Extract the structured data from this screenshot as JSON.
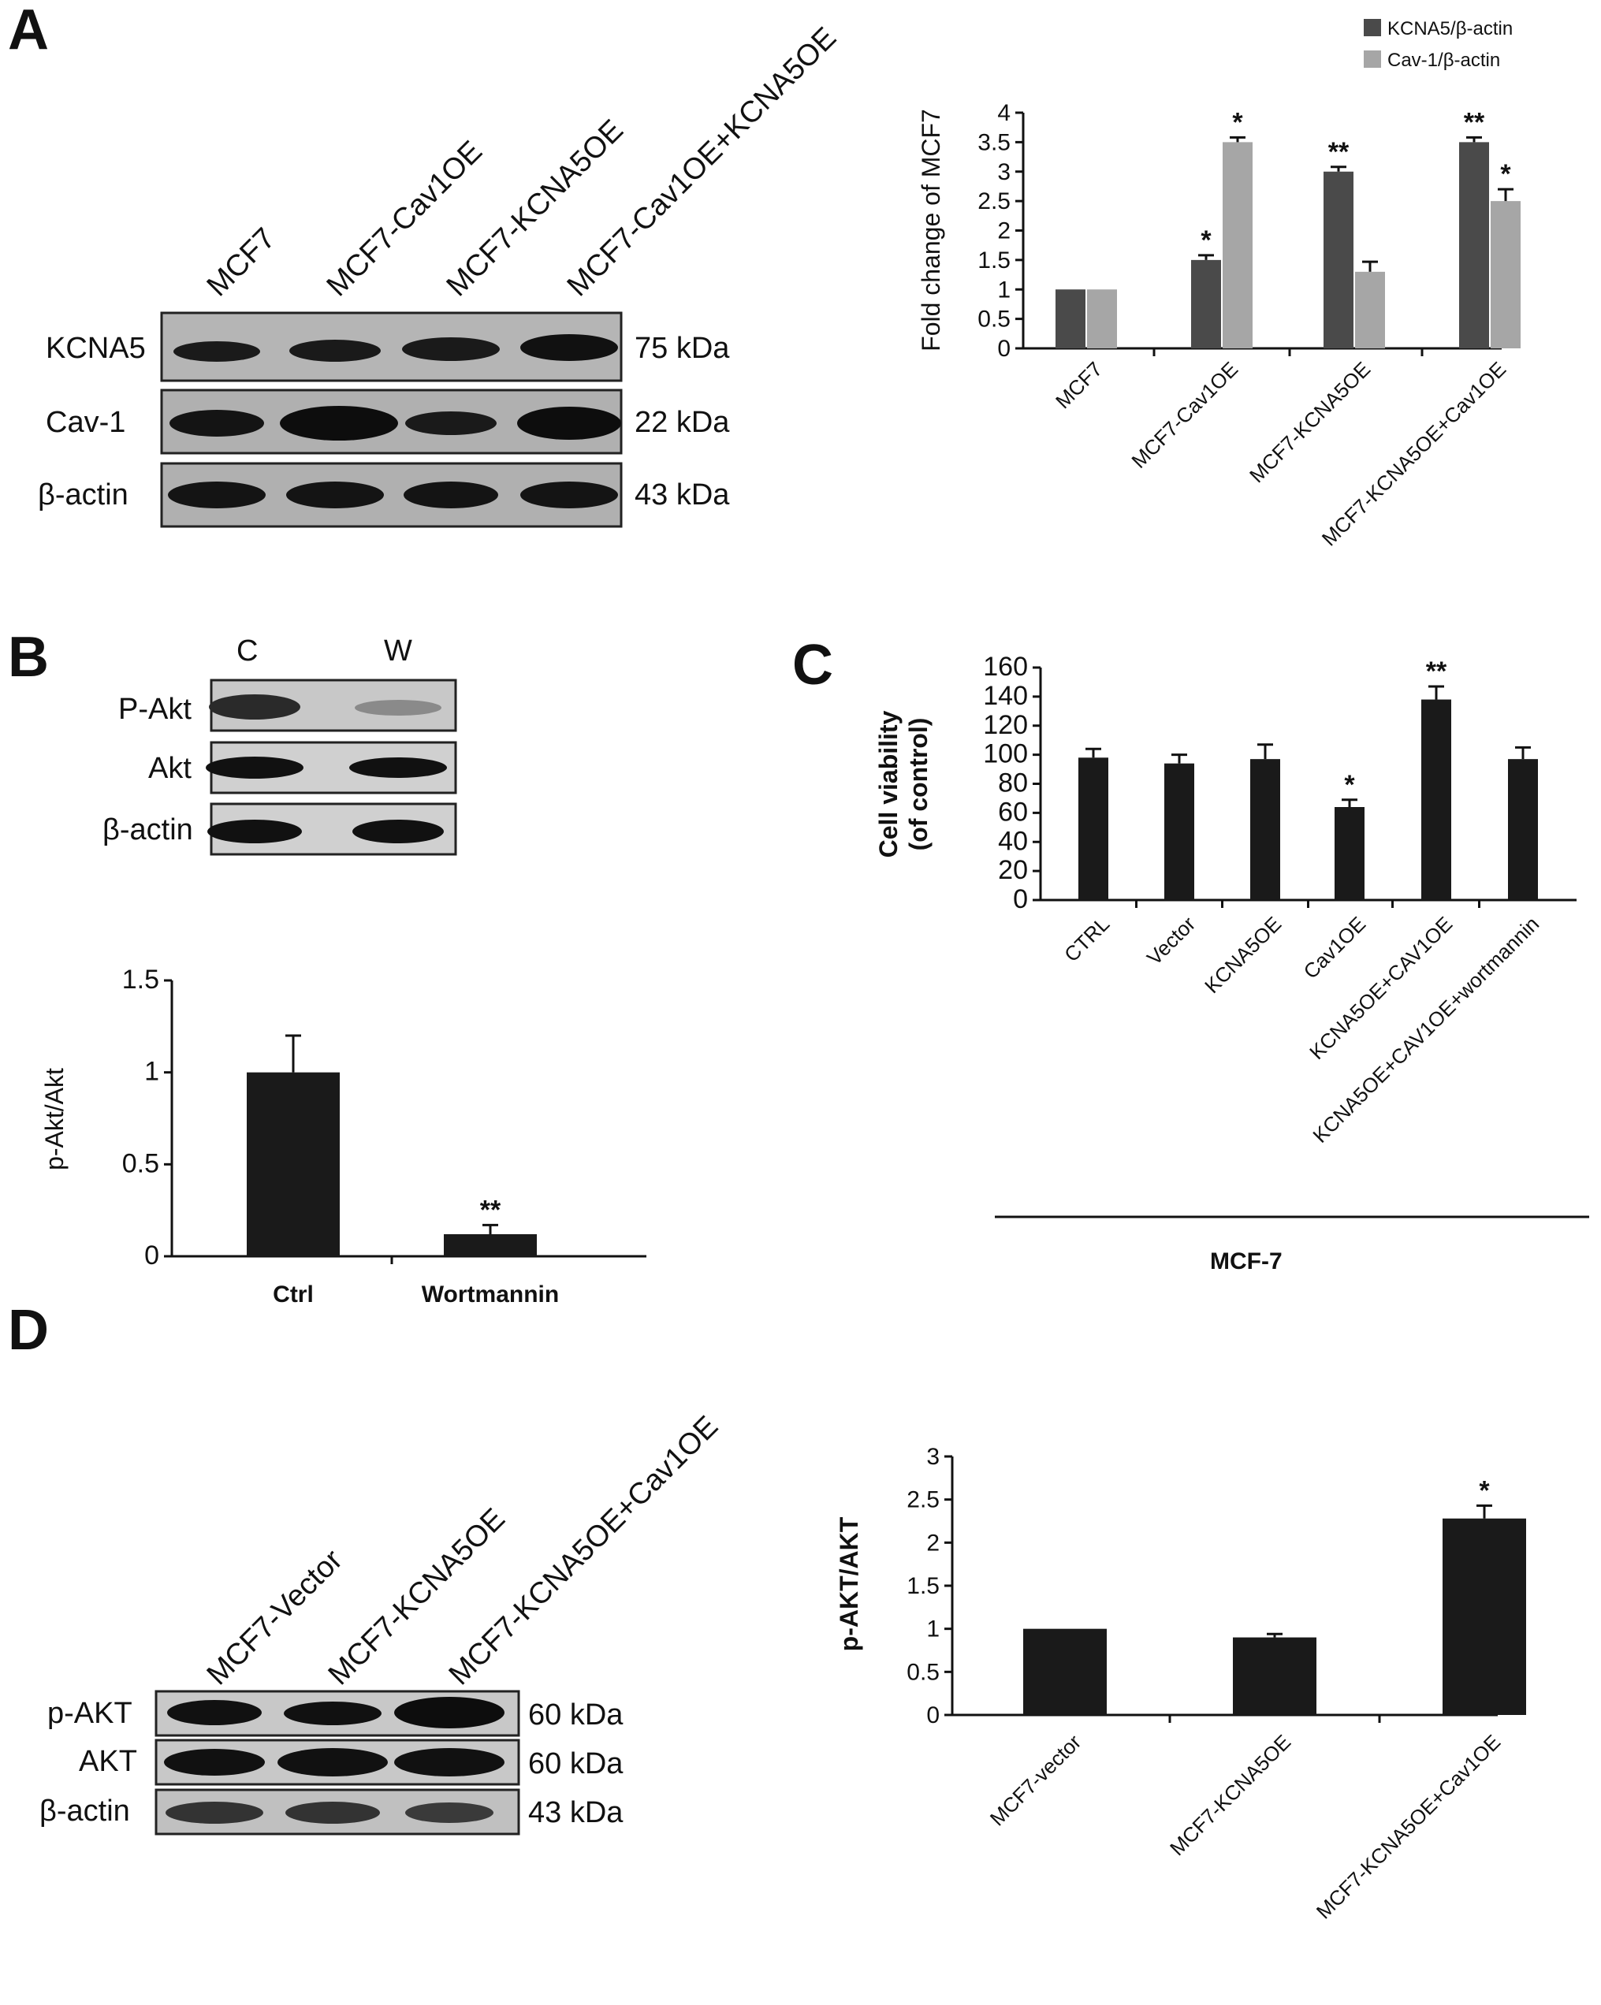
{
  "panels": {
    "A": {
      "letter": "A",
      "blot": {
        "lanes": [
          "MCF7",
          "MCF7-Cav1OE",
          "MCF7-KCNA5OE",
          "MCF7-Cav1OE+KCNA5OE"
        ],
        "rows": [
          {
            "label": "KCNA5",
            "kda": "75  kDa"
          },
          {
            "label": "Cav-1",
            "kda": "22  kDa"
          },
          {
            "label": "β-actin",
            "kda": "43  kDa"
          }
        ]
      }
    },
    "B": {
      "letter": "B",
      "blot": {
        "lanes": [
          "C",
          "W"
        ],
        "rows": [
          {
            "label": "P-Akt"
          },
          {
            "label": "Akt"
          },
          {
            "label": "β-actin"
          }
        ]
      }
    },
    "C": {
      "letter": "C",
      "group_label": "MCF-7"
    },
    "D": {
      "letter": "D",
      "blot": {
        "lanes": [
          "MCF7-Vector",
          "MCF7-KCNA5OE",
          "MCF7-KCNA5OE+Cav1OE"
        ],
        "rows": [
          {
            "label": "p-AKT",
            "kda": "60 kDa"
          },
          {
            "label": "AKT",
            "kda": "60 kDa"
          },
          {
            "label": "β-actin",
            "kda": "43 kDa"
          }
        ]
      }
    }
  },
  "chart_data": [
    {
      "id": "A",
      "type": "bar",
      "categories": [
        "MCF7",
        "MCF7-Cav1OE",
        "MCF7-KCNA5OE",
        "MCF7-KCNA5OE+Cav1OE"
      ],
      "series": [
        {
          "name": "KCNA5/β-actin",
          "values": [
            1,
            1.5,
            3,
            3.5
          ],
          "errors": [
            0,
            0.08,
            0.08,
            0.08
          ],
          "sig": [
            "",
            "*",
            "**",
            "**"
          ],
          "color": "#4a4a4a"
        },
        {
          "name": "Cav-1/β-actin",
          "values": [
            1,
            3.5,
            1.3,
            2.5
          ],
          "errors": [
            0,
            0.08,
            0.17,
            0.2
          ],
          "sig": [
            "",
            "*",
            "",
            "*"
          ],
          "color": "#a6a6a6"
        }
      ],
      "ylabel": "Fold change of MCF7",
      "ylim": [
        0,
        4
      ],
      "yticks": [
        "0",
        "0.5",
        "1",
        "1.5",
        "2",
        "2.5",
        "3",
        "3.5",
        "4"
      ],
      "legend_position": "top-right"
    },
    {
      "id": "B",
      "type": "bar",
      "categories": [
        "Ctrl",
        "Wortmannin"
      ],
      "values": [
        1,
        0.12
      ],
      "errors": [
        0.2,
        0.05
      ],
      "sig": [
        "",
        "**"
      ],
      "ylabel": "p-Akt/Akt",
      "ylim": [
        0,
        1.5
      ],
      "yticks": [
        "0",
        "0.5",
        "1",
        "1.5"
      ]
    },
    {
      "id": "C",
      "type": "bar",
      "categories": [
        "CTRL",
        "Vector",
        "KCNA5OE",
        "Cav1OE",
        "KCNA5OE+CAV1OE",
        "KCNA5OE+CAV1OE+wortmannin"
      ],
      "values": [
        98,
        94,
        97,
        64,
        138,
        97
      ],
      "errors": [
        6,
        6,
        10,
        5,
        9,
        8
      ],
      "sig": [
        "",
        "",
        "",
        "*",
        "**",
        ""
      ],
      "ylabel": [
        "Cell viability",
        "(of control)"
      ],
      "ylim": [
        0,
        160
      ],
      "yticks": [
        "0",
        "20",
        "40",
        "60",
        "80",
        "100",
        "120",
        "140",
        "160"
      ]
    },
    {
      "id": "D",
      "type": "bar",
      "categories": [
        "MCF7-vector",
        "MCF7-KCNA5OE",
        "MCF7-KCNA5OE+Cav1OE"
      ],
      "values": [
        1,
        0.9,
        2.28
      ],
      "errors": [
        0,
        0.04,
        0.15
      ],
      "sig": [
        "",
        "",
        "*"
      ],
      "ylabel": "p-AKT/AKT",
      "ylim": [
        0,
        3
      ],
      "yticks": [
        "0",
        "0.5",
        "1",
        "1.5",
        "2",
        "2.5",
        "3"
      ]
    }
  ]
}
